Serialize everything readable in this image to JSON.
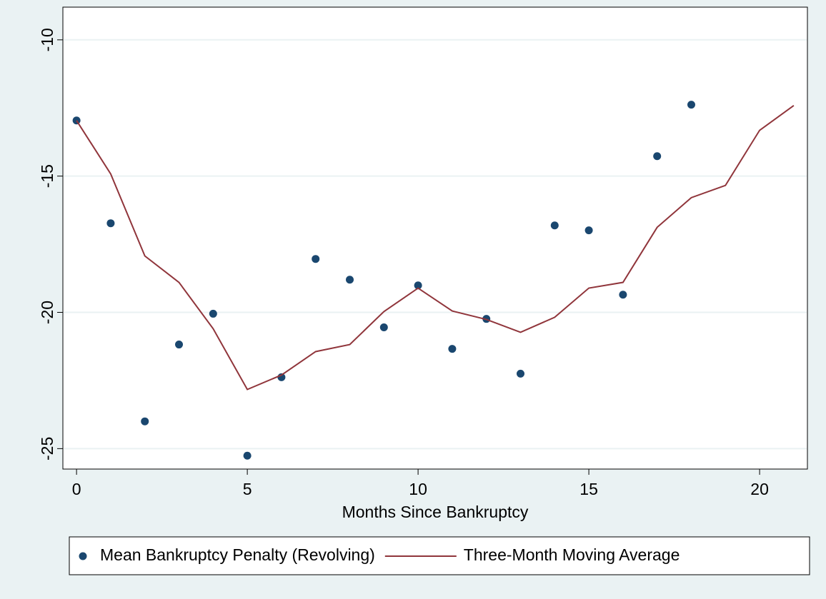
{
  "chart_data": {
    "type": "line",
    "xlabel": "Months Since Bankruptcy",
    "xlim": [
      -0.4,
      21.4
    ],
    "xticks": [
      0,
      5,
      10,
      15,
      20
    ],
    "ylim": [
      -25.75,
      -8.8
    ],
    "yticks": [
      -25,
      -20,
      -15,
      -10
    ],
    "grid": true,
    "legend": "bottom",
    "series": [
      {
        "name": "Mean Bankruptcy Penalty (Revolving)",
        "color": "#1a476f",
        "mode": "markers",
        "x": [
          0,
          1,
          2,
          3,
          4,
          5,
          6,
          7,
          8,
          9,
          10,
          11,
          12,
          13,
          14,
          15,
          16,
          17,
          18
        ],
        "values": [
          -12.96,
          -16.73,
          -24.0,
          -21.18,
          -20.05,
          -25.26,
          -22.38,
          -18.04,
          -18.8,
          -20.55,
          -19.01,
          -21.34,
          -20.24,
          -22.25,
          -16.81,
          -16.99,
          -19.35,
          -14.27,
          -12.38
        ]
      },
      {
        "name": "Three-Month Moving Average",
        "color": "#90353b",
        "mode": "lines",
        "x": [
          0,
          1,
          2,
          3,
          4,
          5,
          6,
          7,
          8,
          9,
          10,
          11,
          12,
          13,
          14,
          15,
          16,
          17,
          18,
          19,
          20,
          21
        ],
        "values": [
          -12.96,
          -14.92,
          -17.93,
          -18.9,
          -20.6,
          -22.83,
          -22.3,
          -21.44,
          -21.18,
          -19.97,
          -19.11,
          -19.95,
          -20.26,
          -20.73,
          -20.18,
          -19.11,
          -18.9,
          -16.88,
          -15.79,
          -15.34,
          -13.32,
          -12.41
        ]
      }
    ]
  }
}
